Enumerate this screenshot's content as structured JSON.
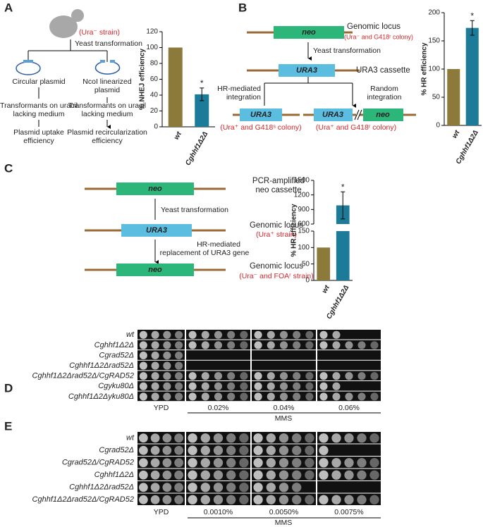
{
  "panel_labels": [
    "A",
    "B",
    "C",
    "D",
    "E"
  ],
  "panel_a": {
    "strain": "(Ura⁻ strain)",
    "step": "Yeast transformation",
    "left": [
      "Circular plasmid",
      "Transformants on uracil",
      "lacking medium",
      "Plasmid uptake",
      "efficiency"
    ],
    "right": [
      "NcoI linearized",
      "plasmid",
      "Transformants on uracil",
      "lacking medium",
      "Plasmid recircularization",
      "efficiency"
    ]
  },
  "panel_b": {
    "gene1": "neo",
    "locus": "Genomic locus",
    "locus_note": "(Ura⁻ and G418ʳ colony)",
    "step": "Yeast transformation",
    "gene2": "URA3",
    "cassette": "URA3 cassette",
    "hr": [
      "HR-mediated",
      "integration"
    ],
    "random": [
      "Random",
      "integration"
    ],
    "out_left_gene": "URA3",
    "out_left_note": "(Ura⁺ and G418ˢ colony)",
    "out_right_gene1": "URA3",
    "out_right_gene2": "neo",
    "out_right_note": "(Ura⁺ and G418ʳ colony)"
  },
  "panel_c": {
    "gene1": "neo",
    "source": [
      "PCR-amplified",
      "neo cassette"
    ],
    "step1": "Yeast transformation",
    "gene2": "URA3",
    "locus1": "Genomic locus",
    "locus1_note": "(Ura⁺ strain)",
    "step2": [
      "HR-mediated",
      "replacement of URA3 gene"
    ],
    "gene3": "neo",
    "locus2": "Genomic locus",
    "locus2_note": "(Ura⁻  and FOAʳ strain)"
  },
  "chart_data": [
    {
      "type": "bar",
      "ylabel": "% NHEJ efficiency",
      "categories": [
        "wt",
        "Cghhf1Δ2Δ"
      ],
      "values": [
        100,
        41
      ],
      "errors": [
        null,
        8
      ],
      "colors": [
        "#8c7a3b",
        "#1b7b99"
      ],
      "annotations": [
        null,
        "*"
      ],
      "ylim": [
        0,
        120
      ],
      "yticks": [
        0,
        20,
        40,
        60,
        80,
        100,
        120
      ]
    },
    {
      "type": "bar",
      "ylabel": "% HR efficiency",
      "categories": [
        "wt",
        "Cghhf1Δ2Δ"
      ],
      "values": [
        100,
        173
      ],
      "errors": [
        null,
        13
      ],
      "colors": [
        "#8c7a3b",
        "#1b7b99"
      ],
      "annotations": [
        null,
        "*"
      ],
      "ylim": [
        0,
        200
      ],
      "yticks": [
        0,
        50,
        100,
        150,
        200
      ]
    },
    {
      "type": "bar",
      "ylabel": "% HR efficiency",
      "categories": [
        "wt",
        "Cghhf1Δ2Δ"
      ],
      "values": [
        100,
        985
      ],
      "errors": [
        null,
        280
      ],
      "colors": [
        "#8c7a3b",
        "#1b7b99"
      ],
      "annotations": [
        null,
        "*"
      ],
      "ylim": [
        0,
        1500
      ],
      "ybreak": [
        150,
        600
      ],
      "yticks": [
        0,
        50,
        100,
        150,
        600,
        900,
        1200,
        1500
      ]
    }
  ],
  "panel_d": {
    "rows": [
      "wt",
      "Cghhf1Δ2Δ",
      "Cgrad52Δ",
      "Cghhf1Δ2Δrad52Δ",
      "Cghhf1Δ2Δrad52Δ/CgRAD52",
      "Cgyku80Δ",
      "Cghhf1Δ2Δyku80Δ"
    ],
    "columns": [
      "YPD",
      "0.02%",
      "0.04%",
      "0.06%"
    ],
    "treatment": "MMS"
  },
  "panel_e": {
    "rows": [
      "wt",
      "Cgrad52Δ",
      "Cgrad52Δ/CgRAD52",
      "Cghhf1Δ2Δ",
      "Cghhf1Δ2Δrad52Δ",
      "Cghhf1Δ2Δrad52Δ/CgRAD52"
    ],
    "columns": [
      "YPD",
      "0.0010%",
      "0.0050%",
      "0.0075%"
    ],
    "treatment": "MMS"
  }
}
